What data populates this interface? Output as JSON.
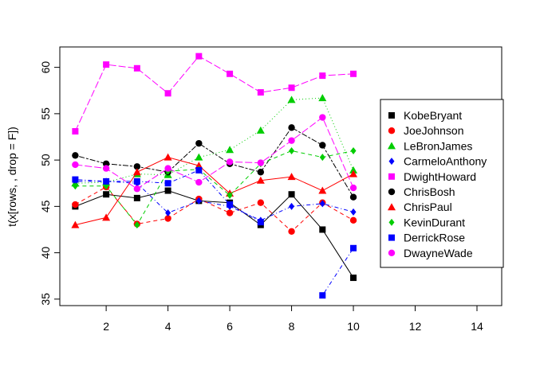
{
  "chart_data": {
    "type": "line",
    "title": "",
    "xlabel": "",
    "ylabel": "t(x[rows, , drop = F])",
    "xlim": [
      0.5,
      14.8
    ],
    "ylim": [
      34.3,
      62.2
    ],
    "xticks": [
      2,
      4,
      6,
      8,
      10,
      12,
      14
    ],
    "yticks": [
      35,
      40,
      45,
      50,
      55,
      60
    ],
    "grid": false,
    "legend_position": "right",
    "x": [
      1,
      2,
      3,
      4,
      5,
      6,
      7,
      8,
      9,
      10
    ],
    "series": [
      {
        "name": "KobeBryant",
        "color": "#000000",
        "marker": "square",
        "dash": "solid",
        "values": [
          45.0,
          46.3,
          45.9,
          46.7,
          45.6,
          45.4,
          43.0,
          46.3,
          42.5,
          37.3
        ]
      },
      {
        "name": "JoeJohnson",
        "color": "#ff0000",
        "marker": "circle",
        "dash": "dashed",
        "values": [
          45.2,
          47.1,
          43.1,
          43.7,
          45.8,
          44.3,
          45.4,
          42.3,
          45.4,
          43.5
        ]
      },
      {
        "name": "LeBronJames",
        "color": "#00cd00",
        "marker": "triangle",
        "dash": "dotted",
        "values": [
          47.5,
          47.6,
          48.5,
          48.4,
          50.3,
          51.1,
          53.2,
          56.5,
          56.7,
          48.9
        ]
      },
      {
        "name": "CarmeloAnthony",
        "color": "#0000ff",
        "marker": "diamond",
        "dash": "dotdash",
        "values": [
          47.7,
          47.7,
          47.5,
          44.3,
          45.6,
          45.0,
          43.5,
          45.0,
          45.3,
          44.4
        ]
      },
      {
        "name": "DwightHoward",
        "color": "#ff00ff",
        "marker": "square",
        "dash": "longdash",
        "values": [
          53.1,
          60.3,
          59.9,
          57.2,
          61.2,
          59.3,
          57.3,
          57.8,
          59.1,
          59.3
        ]
      },
      {
        "name": "ChrisBosh",
        "color": "#000000",
        "marker": "circle",
        "dash": "twodash",
        "values": [
          50.5,
          49.6,
          49.3,
          48.7,
          51.8,
          49.6,
          48.7,
          53.5,
          51.6,
          46.0
        ]
      },
      {
        "name": "ChrisPaul",
        "color": "#ff0000",
        "marker": "triangle",
        "dash": "solid",
        "values": [
          43.0,
          43.8,
          48.7,
          50.3,
          49.4,
          46.4,
          47.8,
          48.2,
          46.7,
          48.5
        ]
      },
      {
        "name": "KevinDurant",
        "color": "#00cd00",
        "marker": "diamond",
        "dash": "dashed",
        "values": [
          47.2,
          47.2,
          43.0,
          48.8,
          49.0,
          46.2,
          49.6,
          51.0,
          50.3,
          51.0
        ]
      },
      {
        "name": "DerrickRose",
        "color": "#0000ff",
        "marker": "square",
        "dash": "dotdash",
        "values": [
          47.9,
          47.7,
          47.7,
          47.5,
          48.9,
          45.2,
          43.3,
          null,
          35.4,
          40.5
        ]
      },
      {
        "name": "DwayneWade",
        "color": "#ff00ff",
        "marker": "circle",
        "dash": "longdash",
        "values": [
          49.5,
          49.1,
          46.9,
          49.1,
          47.6,
          49.8,
          49.7,
          52.1,
          54.6,
          47.0
        ]
      }
    ]
  }
}
